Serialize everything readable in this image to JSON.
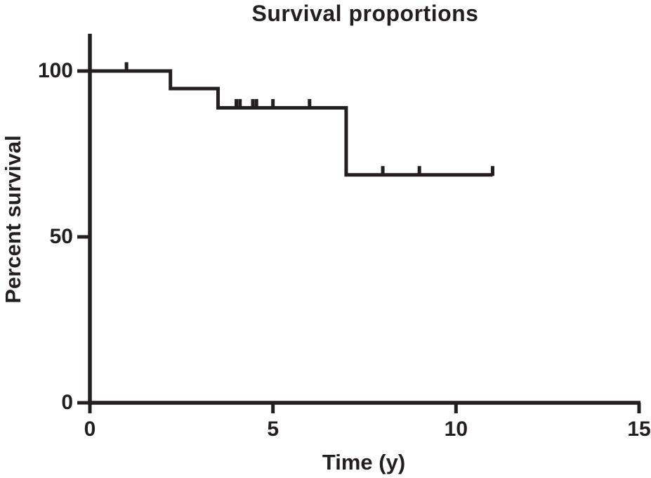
{
  "chart_data": {
    "type": "line",
    "subtype": "kaplan-meier-step",
    "title": "Survival proportions",
    "xlabel": "Time (y)",
    "ylabel": "Percent survival",
    "xlim": [
      0,
      15
    ],
    "ylim": [
      0,
      100
    ],
    "xticks": [
      0,
      5,
      10,
      15
    ],
    "yticks": [
      0,
      50,
      100
    ],
    "grid": false,
    "legend": null,
    "line_color": "#231f20",
    "background_color": "#ffffff",
    "series": [
      {
        "name": "Survival proportion",
        "steps": [
          {
            "t": 0.0,
            "s": 100.0
          },
          {
            "t": 2.2,
            "s": 94.7
          },
          {
            "t": 3.5,
            "s": 88.9
          },
          {
            "t": 7.0,
            "s": 68.7
          }
        ],
        "end_t": 11.0,
        "censor_marks": [
          {
            "t": 1.0,
            "s": 100.0
          },
          {
            "t": 4.0,
            "s": 88.9
          },
          {
            "t": 4.1,
            "s": 88.9
          },
          {
            "t": 4.45,
            "s": 88.9
          },
          {
            "t": 4.55,
            "s": 88.9
          },
          {
            "t": 5.0,
            "s": 88.9
          },
          {
            "t": 6.0,
            "s": 88.9
          },
          {
            "t": 8.0,
            "s": 68.7
          },
          {
            "t": 9.0,
            "s": 68.7
          },
          {
            "t": 11.0,
            "s": 68.7
          }
        ]
      }
    ]
  }
}
